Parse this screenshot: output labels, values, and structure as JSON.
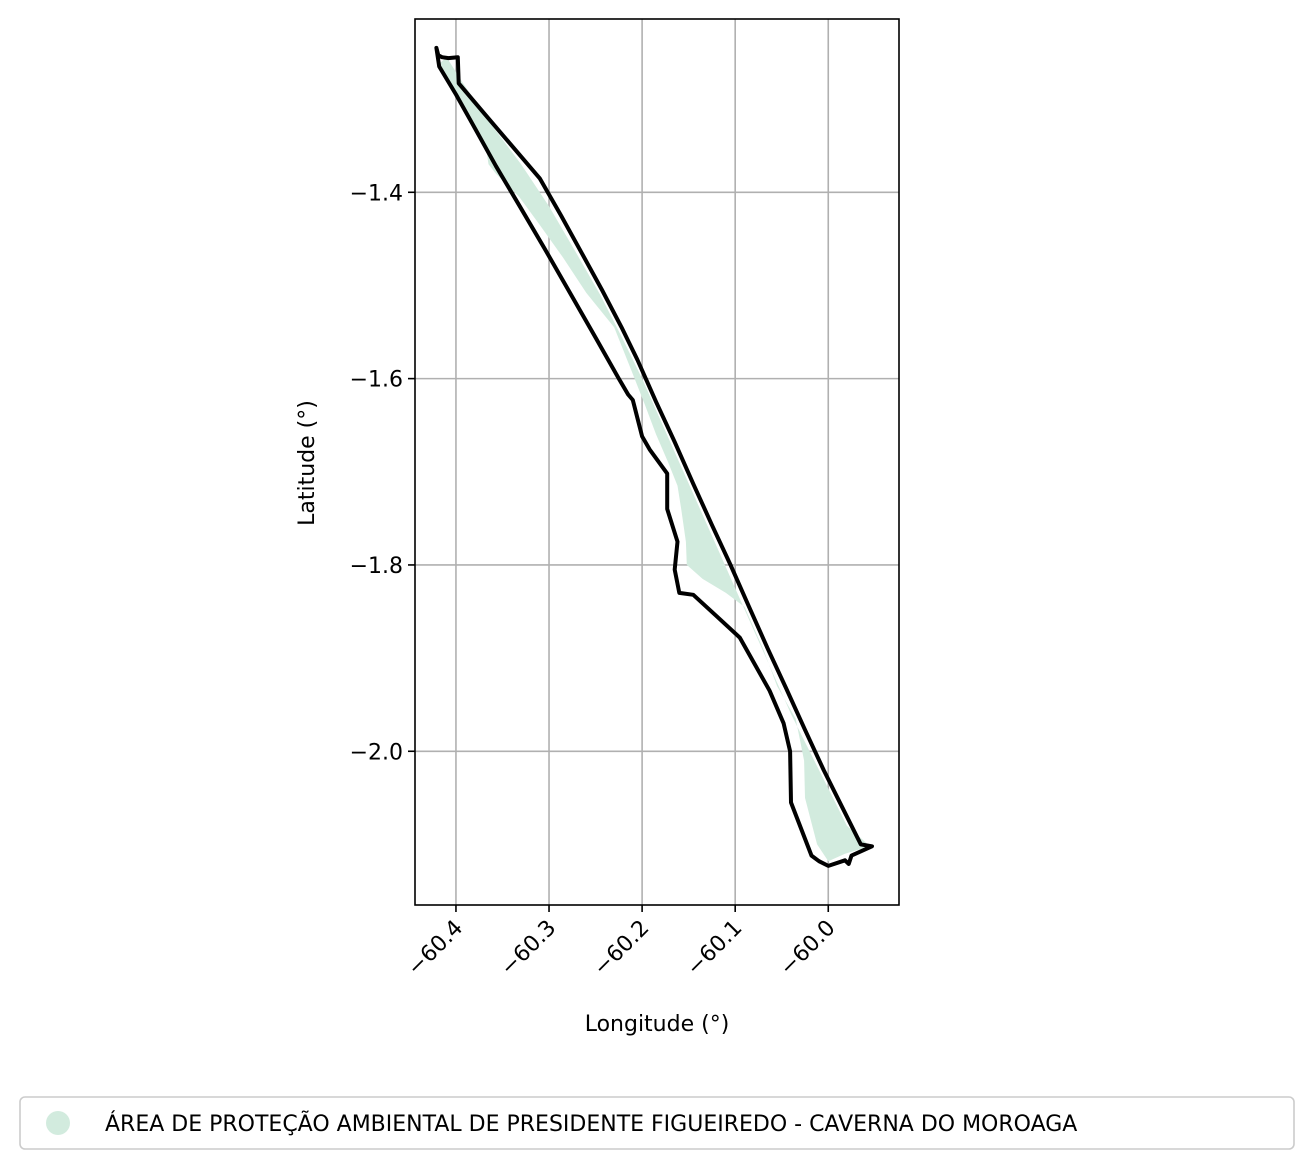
{
  "map": {
    "xlabel": "Longitude (°)",
    "ylabel": "Latitude (°)",
    "xlim": [
      -60.444,
      -59.924
    ],
    "ylim": [
      -2.165,
      -1.214
    ],
    "x_ticks": [
      {
        "value": -60.4,
        "label": "−60.4"
      },
      {
        "value": -60.3,
        "label": "−60.3"
      },
      {
        "value": -60.2,
        "label": "−60.2"
      },
      {
        "value": -60.1,
        "label": "−60.1"
      },
      {
        "value": -60.0,
        "label": "−60.0"
      }
    ],
    "y_ticks": [
      {
        "value": -1.4,
        "label": "−1.4"
      },
      {
        "value": -1.6,
        "label": "−1.6"
      },
      {
        "value": -1.8,
        "label": "−1.8"
      },
      {
        "value": -2.0,
        "label": "−2.0"
      }
    ],
    "grid": true,
    "legend_position": "bottom-center",
    "legend": [
      {
        "label": "ÁREA DE PROTEÇÃO AMBIENTAL DE PRESIDENTE FIGUEIREDO - CAVERNA DO MOROAGA",
        "color": "#d2ebde"
      }
    ],
    "fill_color": "#d2ebde",
    "outline_color": "#000000",
    "fill_polygon": [
      [
        -60.41,
        -1.255
      ],
      [
        -60.393,
        -1.282
      ],
      [
        -60.36,
        -1.33
      ],
      [
        -60.33,
        -1.37
      ],
      [
        -60.3,
        -1.415
      ],
      [
        -60.272,
        -1.463
      ],
      [
        -60.245,
        -1.51
      ],
      [
        -60.222,
        -1.555
      ],
      [
        -60.2,
        -1.6
      ],
      [
        -60.18,
        -1.645
      ],
      [
        -60.16,
        -1.69
      ],
      [
        -60.14,
        -1.735
      ],
      [
        -60.12,
        -1.78
      ],
      [
        -60.1,
        -1.825
      ],
      [
        -60.08,
        -1.87
      ],
      [
        -60.06,
        -1.915
      ],
      [
        -60.04,
        -1.96
      ],
      [
        -60.02,
        -2.0
      ],
      [
        -60.0,
        -2.04
      ],
      [
        -59.98,
        -2.08
      ],
      [
        -59.955,
        -2.102
      ],
      [
        -59.982,
        -2.11
      ],
      [
        -60.0,
        -2.118
      ],
      [
        -60.012,
        -2.1
      ],
      [
        -60.025,
        -2.05
      ],
      [
        -60.026,
        -2.01
      ],
      [
        -60.035,
        -1.965
      ],
      [
        -60.055,
        -1.93
      ],
      [
        -60.07,
        -1.89
      ],
      [
        -60.09,
        -1.845
      ],
      [
        -60.11,
        -1.83
      ],
      [
        -60.135,
        -1.815
      ],
      [
        -60.152,
        -1.8
      ],
      [
        -60.153,
        -1.775
      ],
      [
        -60.158,
        -1.74
      ],
      [
        -60.162,
        -1.715
      ],
      [
        -60.172,
        -1.69
      ],
      [
        -60.185,
        -1.66
      ],
      [
        -60.197,
        -1.628
      ],
      [
        -60.212,
        -1.59
      ],
      [
        -60.23,
        -1.545
      ],
      [
        -60.26,
        -1.508
      ],
      [
        -60.285,
        -1.47
      ],
      [
        -60.31,
        -1.435
      ],
      [
        -60.332,
        -1.405
      ],
      [
        -60.357,
        -1.38
      ],
      [
        -60.365,
        -1.37
      ],
      [
        -60.368,
        -1.35
      ],
      [
        -60.385,
        -1.318
      ],
      [
        -60.405,
        -1.283
      ],
      [
        -60.418,
        -1.262
      ]
    ],
    "outline_polygon": [
      [
        -60.415,
        -1.255
      ],
      [
        -60.408,
        -1.256
      ],
      [
        -60.398,
        -1.255
      ],
      [
        -60.397,
        -1.283
      ],
      [
        -60.37,
        -1.315
      ],
      [
        -60.34,
        -1.35
      ],
      [
        -60.31,
        -1.385
      ],
      [
        -60.287,
        -1.425
      ],
      [
        -60.265,
        -1.465
      ],
      [
        -60.243,
        -1.505
      ],
      [
        -60.222,
        -1.545
      ],
      [
        -60.205,
        -1.58
      ],
      [
        -60.185,
        -1.625
      ],
      [
        -60.165,
        -1.668
      ],
      [
        -60.145,
        -1.713
      ],
      [
        -60.125,
        -1.757
      ],
      [
        -60.105,
        -1.8
      ],
      [
        -60.085,
        -1.845
      ],
      [
        -60.065,
        -1.89
      ],
      [
        -60.045,
        -1.933
      ],
      [
        -60.025,
        -1.977
      ],
      [
        -60.005,
        -2.02
      ],
      [
        -59.985,
        -2.06
      ],
      [
        -59.965,
        -2.1
      ],
      [
        -59.953,
        -2.102
      ],
      [
        -59.975,
        -2.112
      ],
      [
        -59.978,
        -2.121
      ],
      [
        -59.982,
        -2.117
      ],
      [
        -60.0,
        -2.123
      ],
      [
        -60.01,
        -2.118
      ],
      [
        -60.018,
        -2.112
      ],
      [
        -60.04,
        -2.055
      ],
      [
        -60.041,
        -2.0
      ],
      [
        -60.048,
        -1.97
      ],
      [
        -60.063,
        -1.935
      ],
      [
        -60.095,
        -1.878
      ],
      [
        -60.12,
        -1.855
      ],
      [
        -60.145,
        -1.832
      ],
      [
        -60.16,
        -1.83
      ],
      [
        -60.165,
        -1.805
      ],
      [
        -60.162,
        -1.775
      ],
      [
        -60.173,
        -1.74
      ],
      [
        -60.173,
        -1.702
      ],
      [
        -60.192,
        -1.676
      ],
      [
        -60.2,
        -1.662
      ],
      [
        -60.21,
        -1.623
      ],
      [
        -60.215,
        -1.617
      ],
      [
        -60.225,
        -1.6
      ],
      [
        -60.25,
        -1.556
      ],
      [
        -60.278,
        -1.507
      ],
      [
        -60.305,
        -1.46
      ],
      [
        -60.332,
        -1.414
      ],
      [
        -60.357,
        -1.372
      ],
      [
        -60.382,
        -1.327
      ],
      [
        -60.4,
        -1.295
      ],
      [
        -60.418,
        -1.265
      ],
      [
        -60.421,
        -1.245
      ],
      [
        -60.419,
        -1.253
      ],
      [
        -60.415,
        -1.255
      ]
    ]
  }
}
